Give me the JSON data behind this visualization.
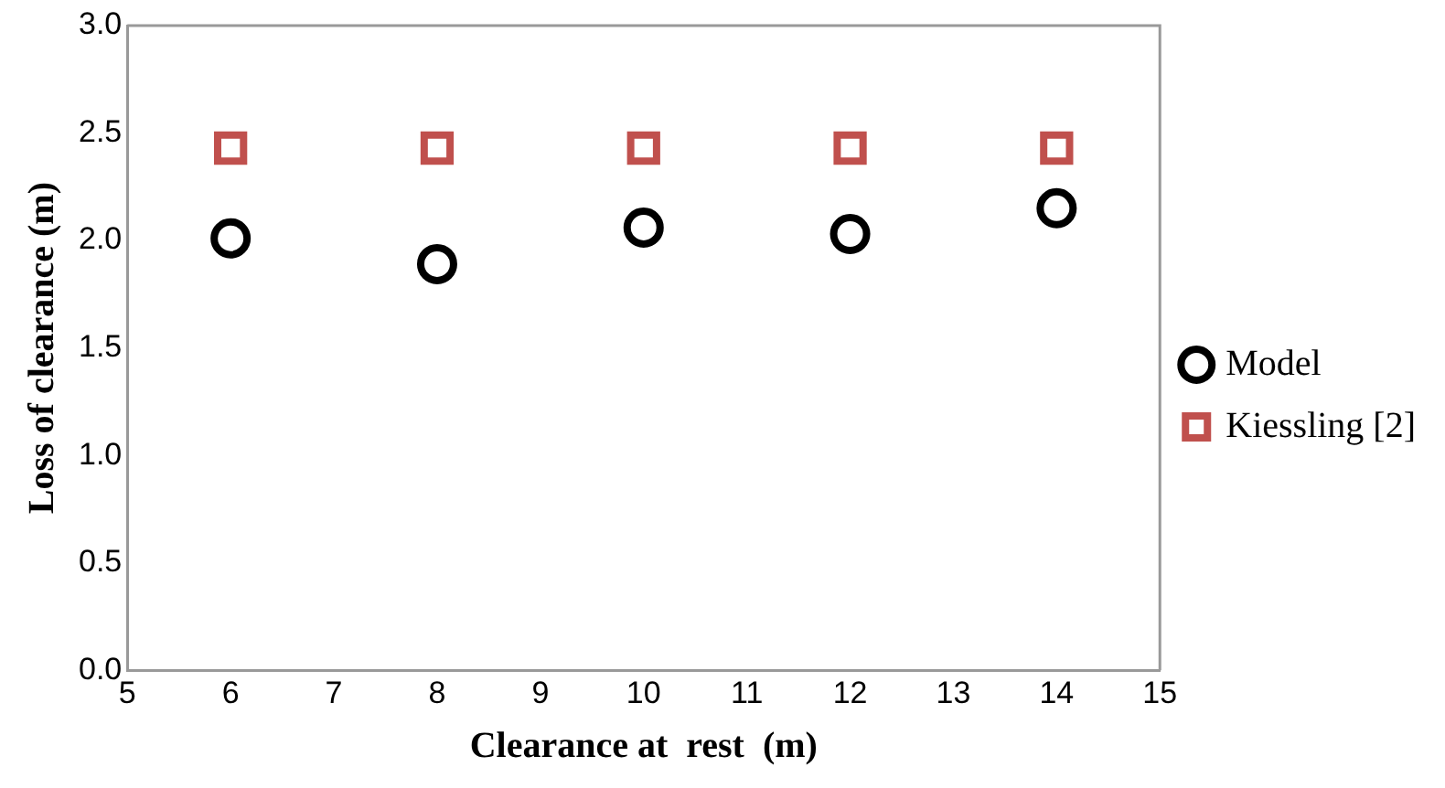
{
  "chart_data": {
    "type": "scatter",
    "xlabel": "Clearance at  rest  (m)",
    "ylabel": "Loss of clearance (m)",
    "x": [
      6,
      8,
      10,
      12,
      14
    ],
    "series": [
      {
        "name": "Model",
        "color": "#000000",
        "marker": "circle",
        "values": [
          2.01,
          1.89,
          2.06,
          2.03,
          2.15
        ]
      },
      {
        "name": "Kiessling [2]",
        "color": "#c0504d",
        "marker": "square",
        "values": [
          2.43,
          2.43,
          2.43,
          2.43,
          2.43
        ]
      }
    ],
    "xlim": [
      5,
      15
    ],
    "xticks": [
      5,
      6,
      7,
      8,
      9,
      10,
      11,
      12,
      13,
      14,
      15
    ],
    "ylim": [
      0,
      3
    ],
    "yticks": [
      {
        "value": 0,
        "label": "0.0"
      },
      0.5,
      {
        "value": 1,
        "label": "1.0"
      },
      1.5,
      {
        "value": 2,
        "label": "2.0"
      },
      2.5,
      {
        "value": 3,
        "label": "3.0"
      }
    ],
    "grid": false,
    "legend": "right"
  }
}
